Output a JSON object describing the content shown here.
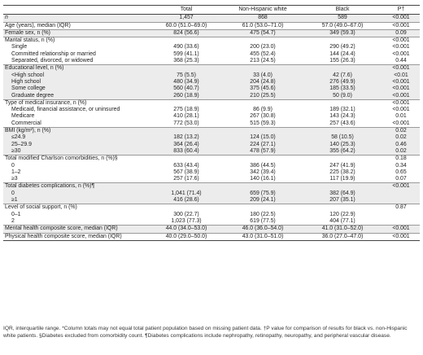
{
  "header": [
    "",
    "Total",
    "Non-Hispanic white",
    "Black",
    "P†"
  ],
  "rows": [
    {
      "label": "n",
      "italic": true,
      "vals": [
        "1,457",
        "868",
        "589",
        "<0.001"
      ],
      "shade": true
    },
    {
      "label": "Age (years), median (IQR)",
      "vals": [
        "60.0 (51.0–69.0)",
        "61.0 (53.0–71.0)",
        "57.0 (49.0–67.0)",
        "<0.001"
      ],
      "sep": true
    },
    {
      "label": "Female sex, n (%)",
      "vals": [
        "824 (56.6)",
        "475 (54.7)",
        "349 (59.3)",
        "0.09"
      ],
      "shade": true,
      "sep": true
    },
    {
      "label": "Marital status, n (%)",
      "vals": [
        "",
        "",
        "",
        "<0.001"
      ],
      "sep": true
    },
    {
      "label": "Single",
      "sub": true,
      "vals": [
        "490 (33.6)",
        "200 (23.0)",
        "290 (49.2)",
        "<0.001"
      ]
    },
    {
      "label": "Committed relationship or married",
      "sub": true,
      "vals": [
        "599 (41.1)",
        "455 (52.4)",
        "144 (24.4)",
        "<0.001"
      ]
    },
    {
      "label": "Separated, divorced, or widowed",
      "sub": true,
      "vals": [
        "368 (25.3)",
        "213 (24.5)",
        "155 (26.3)",
        "0.44"
      ]
    },
    {
      "label": "Educational level, n (%)",
      "vals": [
        "",
        "",
        "",
        "<0.001"
      ],
      "shade": true,
      "sep": true
    },
    {
      "label": "<High school",
      "sub": true,
      "vals": [
        "75 (5.5)",
        "33 (4.0)",
        "42 (7.6)",
        "<0.01"
      ],
      "shade": true
    },
    {
      "label": "High school",
      "sub": true,
      "vals": [
        "480 (34.9)",
        "204 (24.8)",
        "276 (49.9)",
        "<0.001"
      ],
      "shade": true
    },
    {
      "label": "Some college",
      "sub": true,
      "vals": [
        "560 (40.7)",
        "375 (45.6)",
        "185 (33.5)",
        "<0.001"
      ],
      "shade": true
    },
    {
      "label": "Graduate degree",
      "sub": true,
      "vals": [
        "260 (18.9)",
        "210 (25.5)",
        "50 (9.0)",
        "<0.001"
      ],
      "shade": true
    },
    {
      "label": "Type of medical insurance, n (%)",
      "vals": [
        "",
        "",
        "",
        "<0.001"
      ],
      "sep": true
    },
    {
      "label": "Medicaid, financial assistance, or uninsured",
      "sub": true,
      "vals": [
        "275 (18.9)",
        "86 (9.9)",
        "189 (32.1)",
        "<0.001"
      ]
    },
    {
      "label": "Medicare",
      "sub": true,
      "vals": [
        "410 (28.1)",
        "267 (30.8)",
        "143 (24.3)",
        "0.01"
      ]
    },
    {
      "label": "Commercial",
      "sub": true,
      "vals": [
        "772 (53.0)",
        "515 (59.3)",
        "257 (43.6)",
        "<0.001"
      ]
    },
    {
      "label": "BMI (kg/m²), n (%)",
      "vals": [
        "",
        "",
        "",
        "0.02"
      ],
      "shade": true,
      "sep": true
    },
    {
      "label": "≤24.9",
      "sub": true,
      "vals": [
        "182 (13.2)",
        "124 (15.0)",
        "58 (10.5)",
        "0.02"
      ],
      "shade": true
    },
    {
      "label": "25–29.9",
      "sub": true,
      "vals": [
        "364 (26.4)",
        "224 (27.1)",
        "140 (25.3)",
        "0.46"
      ],
      "shade": true
    },
    {
      "label": "≥30",
      "sub": true,
      "vals": [
        "833 (60.4)",
        "478 (57.9)",
        "355 (64.2)",
        "0.02"
      ],
      "shade": true
    },
    {
      "label": "Total modified Charlson comorbidities, n (%)§",
      "vals": [
        "",
        "",
        "",
        "0.18"
      ],
      "sep": true
    },
    {
      "label": "0",
      "sub": true,
      "vals": [
        "633 (43.4)",
        "386 (44.5)",
        "247 (41.9)",
        "0.34"
      ]
    },
    {
      "label": "1–2",
      "sub": true,
      "vals": [
        "567 (38.9)",
        "342 (39.4)",
        "225 (38.2)",
        "0.65"
      ]
    },
    {
      "label": "≥3",
      "sub": true,
      "vals": [
        "257 (17.6)",
        "140 (16.1)",
        "117 (19.9)",
        "0.07"
      ]
    },
    {
      "label": "Total diabetes complications, n (%)¶",
      "vals": [
        "",
        "",
        "",
        "<0.001"
      ],
      "shade": true,
      "sep": true
    },
    {
      "label": "0",
      "sub": true,
      "vals": [
        "1,041 (71.4)",
        "659 (75.9)",
        "382 (64.9)",
        ""
      ],
      "shade": true
    },
    {
      "label": "≥1",
      "sub": true,
      "vals": [
        "416 (28.6)",
        "209 (24.1)",
        "207 (35.1)",
        ""
      ],
      "shade": true
    },
    {
      "label": "Level of social support, n (%)",
      "vals": [
        "",
        "",
        "",
        "0.87"
      ],
      "sep": true
    },
    {
      "label": "0–1",
      "sub": true,
      "vals": [
        "300 (22.7)",
        "180 (22.5)",
        "120 (22.9)",
        ""
      ]
    },
    {
      "label": "2",
      "sub": true,
      "vals": [
        "1,023 (77.3)",
        "619 (77.5)",
        "404 (77.1)",
        ""
      ]
    },
    {
      "label": "Mental health composite score, median (IQR)",
      "vals": [
        "44.0 (34.0–53.0)",
        "46.0 (36.0–54.0)",
        "41.0 (31.0–52.0)",
        "<0.001"
      ],
      "shade": true,
      "sep": true
    },
    {
      "label": "Physical health composite score, median (IQR)",
      "vals": [
        "40.0 (29.0–50.0)",
        "43.0 (31.0–51.0)",
        "36.0 (27.0–47.0)",
        "<0.001"
      ],
      "sep": true,
      "last": true
    }
  ],
  "footnote": "IQR, interquartile range. *Column totals may not equal total patient population based on missing patient data. †P value for comparison of results for black vs. non-Hispanic white patients. §Diabetes excluded from comorbidity count. ¶Diabetes complications include nephropathy, retinopathy, neuropathy, and peripheral vascular disease."
}
